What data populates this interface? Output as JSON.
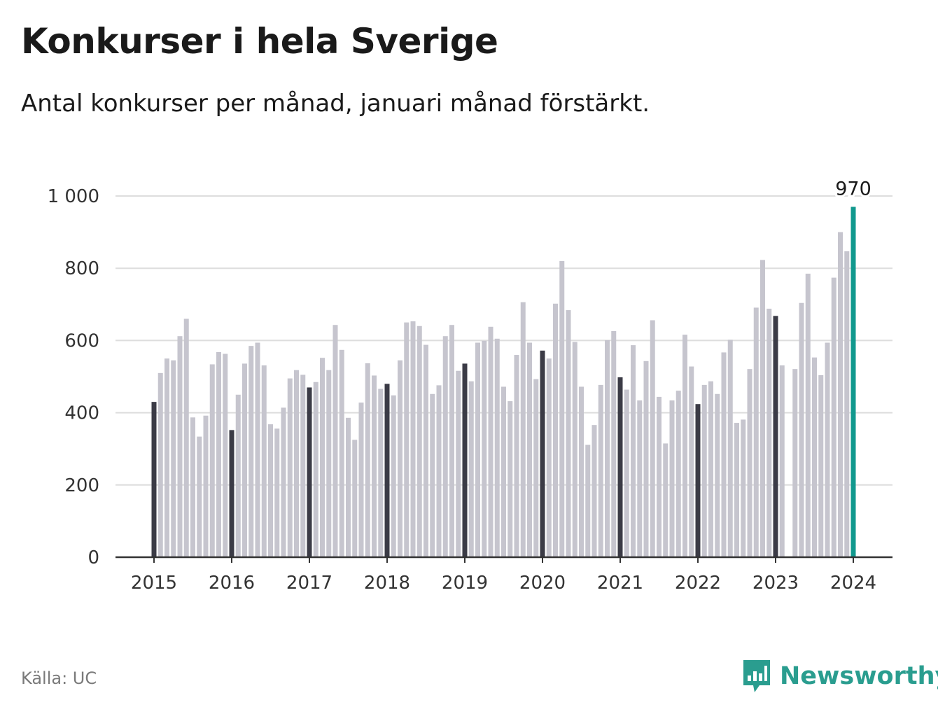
{
  "header": {
    "title": "Konkurser i hela Sverige",
    "subtitle": "Antal konkurser per månad, januari månad förstärkt."
  },
  "footer": {
    "source": "Källa: UC",
    "brand": "Newsworthy"
  },
  "colors": {
    "bar": "#c6c5ce",
    "january_bar": "#3b3b46",
    "highlight_bar": "#11998e",
    "grid": "#dddddd",
    "axis": "#333333",
    "brand": "#2a9d8f"
  },
  "icons": {
    "logo": "bar-chart-speech-bubble-icon"
  },
  "chart_data": {
    "type": "bar",
    "ylim": [
      0,
      1000
    ],
    "yticks": [
      0,
      200,
      400,
      600,
      800,
      1000
    ],
    "ytick_labels": [
      "0",
      "200",
      "400",
      "600",
      "800",
      "1 000"
    ],
    "xtick_labels": [
      "2015",
      "2016",
      "2017",
      "2018",
      "2019",
      "2020",
      "2021",
      "2022",
      "2023",
      "2024"
    ],
    "grid": true,
    "start": "2015-01",
    "january_emphasized": true,
    "highlight": {
      "month": "2024-01",
      "value": 970,
      "label": "970"
    },
    "values": [
      430,
      510,
      550,
      545,
      612,
      660,
      387,
      334,
      392,
      534,
      568,
      563,
      352,
      450,
      536,
      585,
      594,
      531,
      368,
      356,
      414,
      495,
      518,
      505,
      470,
      485,
      552,
      518,
      643,
      574,
      386,
      325,
      428,
      537,
      503,
      466,
      480,
      448,
      545,
      650,
      653,
      640,
      588,
      452,
      476,
      612,
      643,
      516,
      536,
      487,
      594,
      599,
      638,
      605,
      472,
      432,
      560,
      706,
      594,
      493,
      572,
      550,
      702,
      820,
      684,
      596,
      472,
      311,
      366,
      477,
      601,
      626,
      498,
      464,
      587,
      434,
      543,
      656,
      444,
      315,
      434,
      461,
      616,
      528,
      424,
      477,
      487,
      452,
      567,
      602,
      372,
      381,
      521,
      691,
      823,
      688,
      668,
      531,
      0,
      521,
      704,
      785,
      553,
      504,
      594,
      774,
      900,
      847,
      970
    ]
  }
}
